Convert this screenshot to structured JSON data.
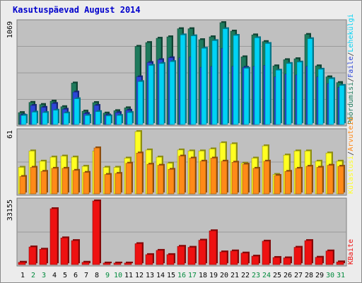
{
  "title": "Kasutuspäevad August 2014",
  "colors": {
    "pages": "#1e7a5c",
    "files": "#2c46d8",
    "hits": "#00d3f5",
    "visits": "#ffff22",
    "sites": "#ff8a18",
    "kbytes": "#ee1111",
    "plot_bg": "#c0c0c0",
    "weekend_label": "#008a3c",
    "weekday_label": "#000000"
  },
  "chart_data": [
    {
      "type": "bar",
      "scale_label": "1069",
      "ylim": [
        0,
        1069
      ],
      "legend_text": [
        "Pöördumisi",
        "/",
        "Faile",
        "/",
        "Lehekülgi"
      ],
      "legend_colors": [
        "#1e7a5c",
        "#333333",
        "#2c46d8",
        "#333333",
        "#00d3f5"
      ],
      "categories": [
        "1",
        "2",
        "3",
        "4",
        "5",
        "6",
        "7",
        "8",
        "9",
        "10",
        "11",
        "12",
        "13",
        "14",
        "15",
        "16",
        "17",
        "18",
        "19",
        "20",
        "21",
        "22",
        "23",
        "24",
        "25",
        "26",
        "27",
        "28",
        "29",
        "30",
        "31"
      ],
      "series": [
        {
          "name": "Pöördumisi",
          "values": [
            125,
            232,
            210,
            245,
            187,
            435,
            140,
            230,
            120,
            145,
            175,
            820,
            860,
            905,
            920,
            1005,
            1005,
            890,
            920,
            1069,
            980,
            710,
            940,
            870,
            615,
            680,
            690,
            945,
            615,
            500,
            440
          ]
        },
        {
          "name": "Faile",
          "values": [
            100,
            200,
            180,
            220,
            160,
            340,
            115,
            200,
            100,
            125,
            150,
            500,
            650,
            680,
            700,
            700,
            710,
            600,
            610,
            800,
            610,
            600,
            610,
            620,
            500,
            530,
            520,
            610,
            500,
            430,
            390
          ]
        },
        {
          "name": "Lehekülgi",
          "values": [
            95,
            130,
            125,
            150,
            120,
            270,
            95,
            135,
            90,
            95,
            125,
            450,
            620,
            640,
            660,
            940,
            930,
            800,
            880,
            1005,
            935,
            590,
            910,
            850,
            570,
            640,
            655,
            900,
            580,
            480,
            410
          ]
        }
      ]
    },
    {
      "type": "bar",
      "scale_label": "61",
      "ylim": [
        0,
        61
      ],
      "legend_text": [
        "Külastusi",
        "/",
        "Arvuteid"
      ],
      "legend_colors": [
        "#ffff22",
        "#333333",
        "#ff8a18"
      ],
      "categories": [
        "1",
        "2",
        "3",
        "4",
        "5",
        "6",
        "7",
        "8",
        "9",
        "10",
        "11",
        "12",
        "13",
        "14",
        "15",
        "16",
        "17",
        "18",
        "19",
        "20",
        "21",
        "22",
        "23",
        "24",
        "25",
        "26",
        "27",
        "28",
        "29",
        "30",
        "31"
      ],
      "series": [
        {
          "name": "Külastusi",
          "values": [
            26,
            42,
            32,
            36,
            37,
            36,
            27,
            42,
            26,
            26,
            35,
            61,
            43,
            36,
            30,
            43,
            42,
            42,
            44,
            50,
            49,
            30,
            35,
            47,
            19,
            38,
            42,
            42,
            32,
            40,
            32
          ]
        },
        {
          "name": "Arvuteid",
          "values": [
            17,
            26,
            22,
            25,
            25,
            23,
            21,
            45,
            19,
            20,
            30,
            40,
            29,
            28,
            24,
            37,
            35,
            32,
            35,
            32,
            31,
            29,
            25,
            32,
            18,
            22,
            25,
            27,
            26,
            28,
            27
          ]
        }
      ]
    },
    {
      "type": "bar",
      "scale_label": "33155",
      "ylim": [
        0,
        33155
      ],
      "legend_text": [
        "KBaite"
      ],
      "legend_colors": [
        "#ee1111"
      ],
      "categories": [
        "1",
        "2",
        "3",
        "4",
        "5",
        "6",
        "7",
        "8",
        "9",
        "10",
        "11",
        "12",
        "13",
        "14",
        "15",
        "16",
        "17",
        "18",
        "19",
        "20",
        "21",
        "22",
        "23",
        "24",
        "25",
        "26",
        "27",
        "28",
        "29",
        "30",
        "31"
      ],
      "series": [
        {
          "name": "KBaite",
          "values": [
            1200,
            9200,
            8000,
            29100,
            13900,
            12500,
            1200,
            33155,
            800,
            800,
            800,
            10900,
            5200,
            7400,
            5200,
            9500,
            9000,
            12700,
            17600,
            6600,
            7100,
            6000,
            4400,
            12200,
            3700,
            3500,
            9000,
            12500,
            3800,
            7100,
            1400
          ]
        }
      ]
    }
  ],
  "x_labels": [
    "1",
    "2",
    "3",
    "4",
    "5",
    "6",
    "7",
    "8",
    "9",
    "10",
    "11",
    "12",
    "13",
    "14",
    "15",
    "16",
    "17",
    "18",
    "19",
    "20",
    "21",
    "22",
    "23",
    "24",
    "25",
    "26",
    "27",
    "28",
    "29",
    "30",
    "31"
  ],
  "weekend_days": [
    "2",
    "3",
    "9",
    "10",
    "16",
    "17",
    "23",
    "24",
    "30",
    "31"
  ]
}
